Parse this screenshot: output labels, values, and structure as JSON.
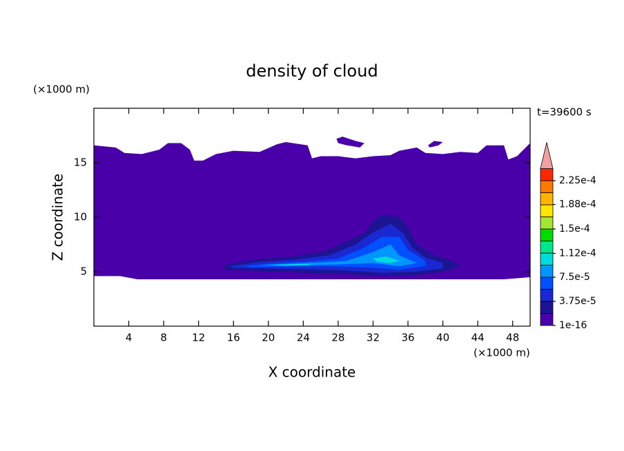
{
  "chart_data": {
    "type": "contour",
    "title": "density of cloud",
    "y_unit": "(×1000 m)",
    "x_unit": "(×1000 m)",
    "time_label": "t=39600 s",
    "xlabel": "X coordinate",
    "ylabel": "Z coordinate",
    "xlim": [
      0,
      50
    ],
    "ylim": [
      0,
      20
    ],
    "xticks": [
      4,
      8,
      12,
      16,
      20,
      24,
      28,
      32,
      36,
      40,
      44,
      48
    ],
    "yticks": [
      5,
      10,
      15
    ],
    "clim": [
      1e-16,
      0.000225
    ],
    "cbar_ticks": [
      1e-16,
      {
        "value": 3.75e-05,
        "label": "3.75e-5"
      },
      {
        "value": 7.5e-05,
        "label": "7.5e-5"
      },
      {
        "value": 0.000112,
        "label": "1.12e-4"
      },
      {
        "value": 0.00015,
        "label": "1.5e-4"
      },
      {
        "value": 0.000188,
        "label": "1.88e-4"
      },
      {
        "value": 0.000225,
        "label": "2.25e-4"
      }
    ],
    "colors": [
      "#4a00a8",
      "#1c1490",
      "#1a28d2",
      "#0050ff",
      "#0096ff",
      "#00dcdc",
      "#00e68c",
      "#00dc00",
      "#a0e632",
      "#ffe600",
      "#ffb400",
      "#ff7800",
      "#ff2800"
    ],
    "over_color": "#f5a0a0",
    "contours": [
      {
        "level": 1e-16,
        "x": [
          0,
          0,
          2.5,
          3.5,
          5.5,
          7.5,
          8.5,
          10,
          11,
          11.5,
          12.5,
          14,
          16,
          19,
          21,
          22,
          24.5,
          25,
          26,
          28,
          30,
          32,
          34,
          35,
          37,
          38,
          40,
          42,
          44,
          45,
          47,
          47.5,
          48.5,
          50,
          50,
          47,
          44,
          40,
          36,
          32,
          28,
          24,
          20,
          16,
          12,
          8,
          5,
          3,
          1.5,
          0
        ],
        "z": [
          4.6,
          16.6,
          16.4,
          15.9,
          15.8,
          16.2,
          16.8,
          16.8,
          16.2,
          15.2,
          15.2,
          15.8,
          16.1,
          16.0,
          16.7,
          16.9,
          16.6,
          15.4,
          15.6,
          15.6,
          15.4,
          15.6,
          15.7,
          16.1,
          16.4,
          15.9,
          15.8,
          16.0,
          15.9,
          16.6,
          16.6,
          15.3,
          15.6,
          16.8,
          4.5,
          4.3,
          4.3,
          4.3,
          4.3,
          4.3,
          4.3,
          4.3,
          4.3,
          4.3,
          4.3,
          4.3,
          4.3,
          4.6,
          4.6,
          4.6
        ]
      },
      {
        "level": 1e-16,
        "x": [
          27.8,
          28.5,
          30,
          31,
          30.5,
          29,
          28
        ],
        "z": [
          17.2,
          17.4,
          17.0,
          16.8,
          16.4,
          16.6,
          16.8
        ]
      },
      {
        "level": 1e-16,
        "x": [
          38.3,
          39,
          40,
          39.5,
          38.5
        ],
        "z": [
          16.6,
          17.0,
          16.9,
          16.6,
          16.4
        ]
      },
      {
        "level": 1.875e-05,
        "x": [
          15,
          18,
          22,
          25,
          27,
          29,
          31,
          32,
          33,
          35,
          36,
          37,
          39,
          41,
          42,
          40,
          37,
          33,
          29,
          26,
          22,
          18,
          15
        ],
        "z": [
          5.6,
          6.1,
          6.3,
          6.7,
          7.0,
          7.8,
          8.5,
          9.6,
          10.2,
          10.0,
          9.0,
          7.5,
          6.5,
          6.0,
          5.5,
          5.0,
          4.7,
          4.6,
          4.8,
          4.8,
          5.0,
          5.1,
          5.2
        ]
      },
      {
        "level": 3.75e-05,
        "x": [
          15.5,
          19,
          23,
          27,
          30,
          32,
          34,
          35.5,
          36.5,
          38,
          40,
          40,
          37,
          33,
          29,
          25,
          20,
          16
        ],
        "z": [
          5.5,
          5.9,
          6.1,
          6.5,
          7.5,
          8.6,
          9.4,
          8.5,
          7.2,
          6.3,
          5.8,
          5.3,
          5.0,
          4.9,
          5.1,
          5.2,
          5.3,
          5.35
        ]
      },
      {
        "level": 5.625e-05,
        "x": [
          17,
          21,
          24,
          28,
          31,
          33,
          35,
          36,
          38,
          38,
          35,
          31,
          27,
          22,
          18
        ],
        "z": [
          5.5,
          5.8,
          5.9,
          6.2,
          7.2,
          8.2,
          8.2,
          7.0,
          6.0,
          5.5,
          5.2,
          5.4,
          5.5,
          5.45,
          5.4
        ]
      },
      {
        "level": 7.5e-05,
        "x": [
          19,
          23,
          26,
          29,
          32,
          34,
          35,
          37,
          35,
          32,
          29,
          25,
          21
        ],
        "z": [
          5.6,
          5.75,
          5.85,
          6.0,
          6.8,
          7.5,
          6.5,
          5.8,
          5.5,
          5.8,
          5.7,
          5.6,
          5.55
        ]
      },
      {
        "level": 9.375e-05,
        "x": [
          20,
          23,
          25,
          24.5,
          22
        ],
        "z": [
          5.6,
          5.7,
          5.72,
          5.6,
          5.55
        ]
      },
      {
        "level": 9.375e-05,
        "x": [
          32,
          33.5,
          35,
          34,
          32.5
        ],
        "z": [
          6.2,
          6.4,
          6.0,
          5.8,
          5.9
        ]
      }
    ]
  }
}
